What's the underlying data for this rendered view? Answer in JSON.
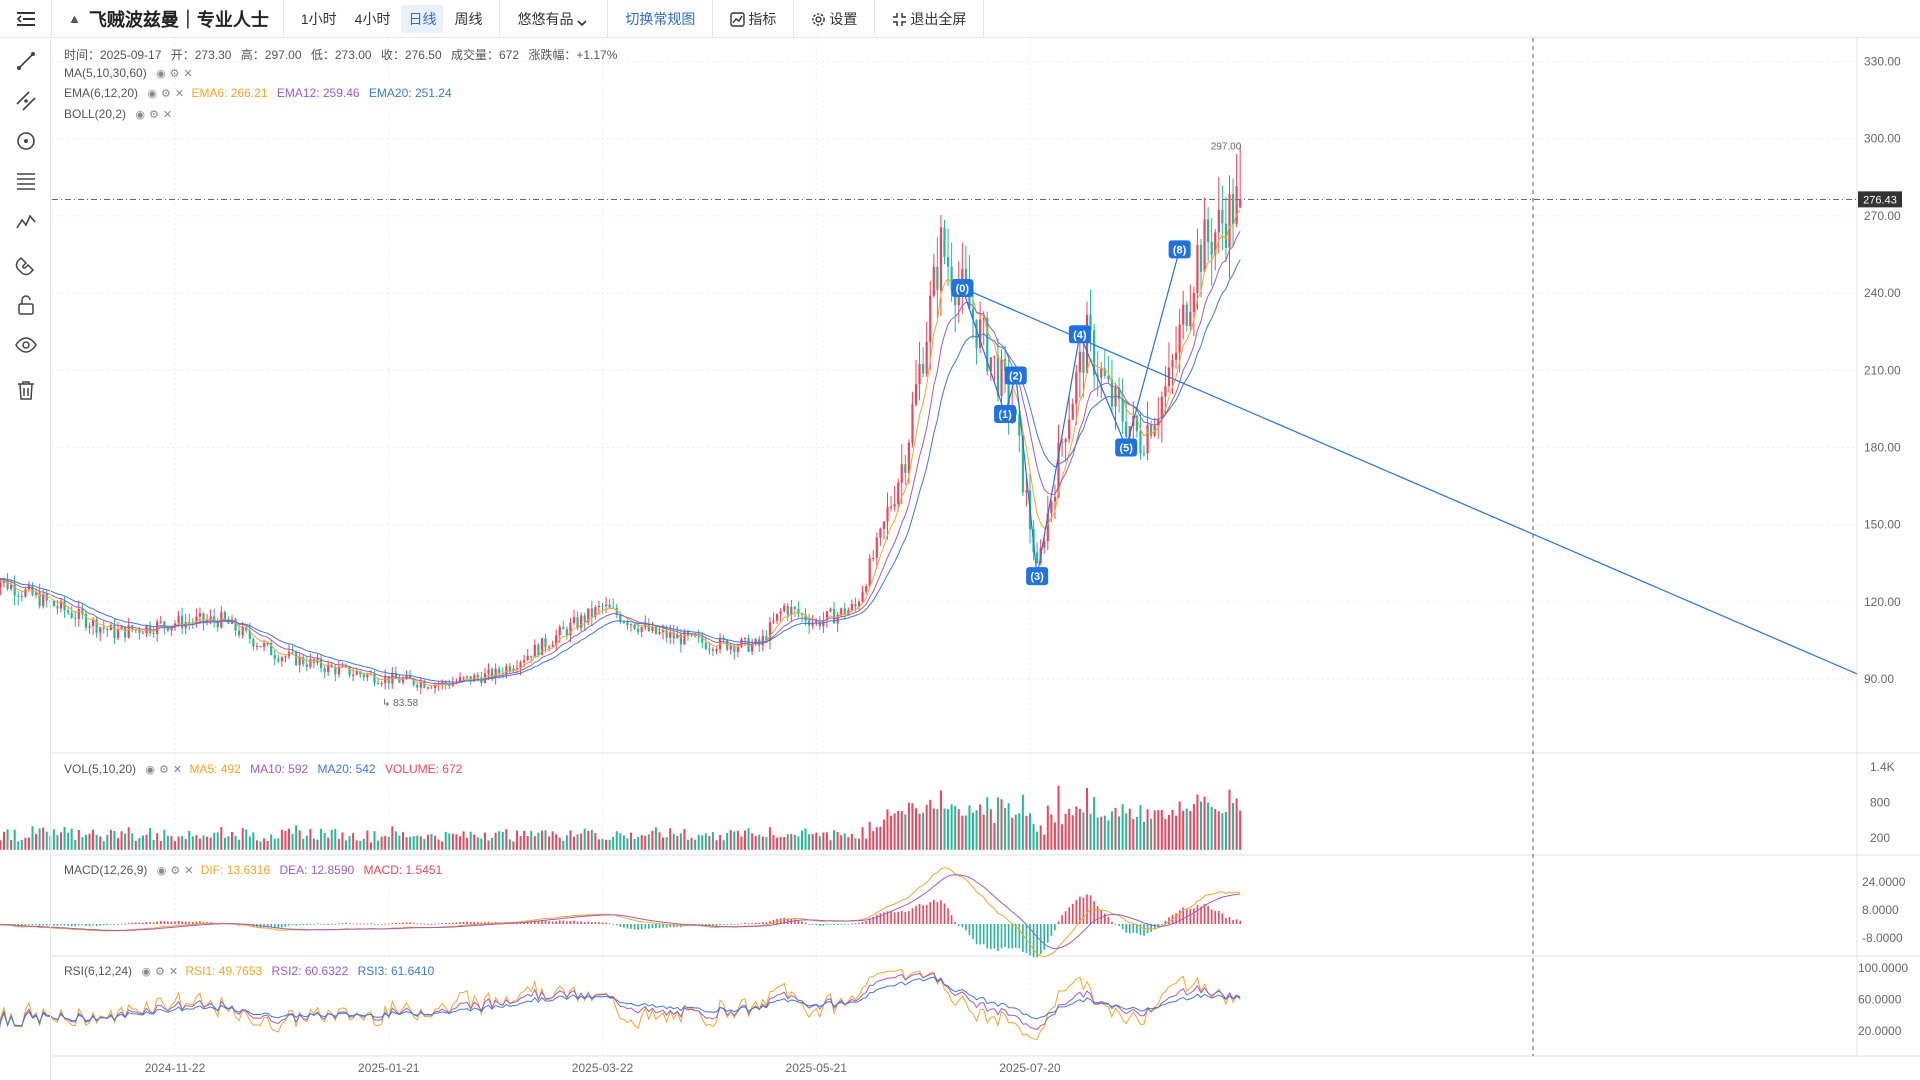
{
  "toolbar": {
    "title": "飞贼波兹曼｜专业人士",
    "periods": [
      "1小时",
      "4小时",
      "日线",
      "周线"
    ],
    "active_period": "日线",
    "product_select": "悠悠有品",
    "switch_label": "切换常规图",
    "indicators_label": "指标",
    "settings_label": "设置",
    "exit_fullscreen_label": "退出全屏"
  },
  "left_tools": [
    "trend-line-icon",
    "parallel-line-icon",
    "circle-icon",
    "fib-lines-icon",
    "wave-icon",
    "magnet-icon",
    "lock-icon",
    "eye-icon",
    "trash-icon"
  ],
  "info_bar": {
    "time": "时间：2025-09-17",
    "open": "开：273.30",
    "high": "高：297.00",
    "low": "低：273.00",
    "close": "收：276.50",
    "volume": "成交量：672",
    "change": "涨跌幅：+1.17%"
  },
  "legends": {
    "ma": "MA(5,10,30,60)",
    "ema": "EMA(6,12,20)",
    "ema6": "EMA6: 266.21",
    "ema12": "EMA12: 259.46",
    "ema20": "EMA20: 251.24",
    "boll": "BOLL(20,2)",
    "vol": "VOL(5,10,20)",
    "vol_ma5": "MA5: 492",
    "vol_ma10": "MA10: 592",
    "vol_ma20": "MA20: 542",
    "vol_volume": "VOLUME: 672",
    "macd": "MACD(12,26,9)",
    "dif": "DIF: 13.6316",
    "dea": "DEA: 12.8590",
    "macd_val": "MACD: 1.5451",
    "rsi": "RSI(6,12,24)",
    "rsi1": "RSI1: 49.7653",
    "rsi2": "RSI2: 60.6322",
    "rsi3": "RSI3: 61.6410"
  },
  "colors": {
    "up": "#f0445a",
    "down": "#26b79a",
    "ema6": "#f5a623",
    "ema12": "#a05ac8",
    "ema20": "#3a7bd5",
    "accent": "#1f72e6",
    "vol_ma5": "#f5a623",
    "vol_ma10": "#a05ac8",
    "vol_ma20": "#3a7bd5",
    "volume": "#f0445a"
  },
  "chart_data": [
    {
      "type": "candlestick",
      "title": "",
      "ylim": [
        60,
        340
      ],
      "y_ticks": [
        "330.00",
        "300.00",
        "270.00",
        "240.00",
        "210.00",
        "180.00",
        "150.00",
        "120.00",
        "90.00"
      ],
      "x_ticks": [
        "2024-11-22",
        "2025-01-21",
        "2025-03-22",
        "2025-05-21",
        "2025-07-20"
      ],
      "current_price": "276.43",
      "max_label": "297.00",
      "min_label": "83.58",
      "last_bar": {
        "date": "2025-09-17",
        "open": 273.3,
        "high": 297.0,
        "low": 273.0,
        "close": 276.5,
        "volume": 672
      },
      "price_path": [
        {
          "x": "2024-10-01",
          "y": 130
        },
        {
          "x": "2024-10-20",
          "y": 118
        },
        {
          "x": "2024-11-05",
          "y": 108
        },
        {
          "x": "2024-11-22",
          "y": 112
        },
        {
          "x": "2024-12-05",
          "y": 113
        },
        {
          "x": "2024-12-20",
          "y": 100
        },
        {
          "x": "2025-01-05",
          "y": 94
        },
        {
          "x": "2025-01-21",
          "y": 90
        },
        {
          "x": "2025-02-05",
          "y": 88
        },
        {
          "x": "2025-02-20",
          "y": 92
        },
        {
          "x": "2025-03-05",
          "y": 103
        },
        {
          "x": "2025-03-15",
          "y": 112
        },
        {
          "x": "2025-03-22",
          "y": 118
        },
        {
          "x": "2025-04-05",
          "y": 108
        },
        {
          "x": "2025-04-20",
          "y": 104
        },
        {
          "x": "2025-05-05",
          "y": 103
        },
        {
          "x": "2025-05-12",
          "y": 118
        },
        {
          "x": "2025-05-21",
          "y": 112
        },
        {
          "x": "2025-06-01",
          "y": 118
        },
        {
          "x": "2025-06-08",
          "y": 145
        },
        {
          "x": "2025-06-15",
          "y": 178
        },
        {
          "x": "2025-06-25",
          "y": 258
        },
        {
          "x": "2025-07-01",
          "y": 240
        },
        {
          "x": "2025-07-08",
          "y": 218
        },
        {
          "x": "2025-07-15",
          "y": 196
        },
        {
          "x": "2025-07-22",
          "y": 132
        },
        {
          "x": "2025-07-30",
          "y": 190
        },
        {
          "x": "2025-08-05",
          "y": 222
        },
        {
          "x": "2025-08-12",
          "y": 198
        },
        {
          "x": "2025-08-20",
          "y": 183
        },
        {
          "x": "2025-08-28",
          "y": 205
        },
        {
          "x": "2025-09-05",
          "y": 255
        },
        {
          "x": "2025-09-17",
          "y": 276.5
        }
      ],
      "wave_labels": [
        {
          "label": "(0)",
          "x": "2025-07-01",
          "y": 242
        },
        {
          "label": "(1)",
          "x": "2025-07-13",
          "y": 193
        },
        {
          "label": "(2)",
          "x": "2025-07-16",
          "y": 208
        },
        {
          "label": "(3)",
          "x": "2025-07-22",
          "y": 130
        },
        {
          "label": "(4)",
          "x": "2025-08-03",
          "y": 224
        },
        {
          "label": "(5)",
          "x": "2025-08-16",
          "y": 180
        },
        {
          "label": "(8)",
          "x": "2025-08-31",
          "y": 257
        }
      ]
    },
    {
      "type": "bar",
      "title": "VOL(5,10,20)",
      "y_ticks": [
        "1.4K",
        "800",
        "200"
      ],
      "ma5": 492,
      "ma10": 592,
      "ma20": 542,
      "volume": 672
    },
    {
      "type": "bar",
      "title": "MACD(12,26,9)",
      "y_ticks": [
        "24.0000",
        "8.0000",
        "-8.0000"
      ],
      "dif": 13.6316,
      "dea": 12.859,
      "macd": 1.5451
    },
    {
      "type": "line",
      "title": "RSI(6,12,24)",
      "y_ticks": [
        "100.0000",
        "60.0000",
        "20.0000"
      ],
      "rsi1": 49.7653,
      "rsi2": 60.6322,
      "rsi3": 61.641
    }
  ]
}
